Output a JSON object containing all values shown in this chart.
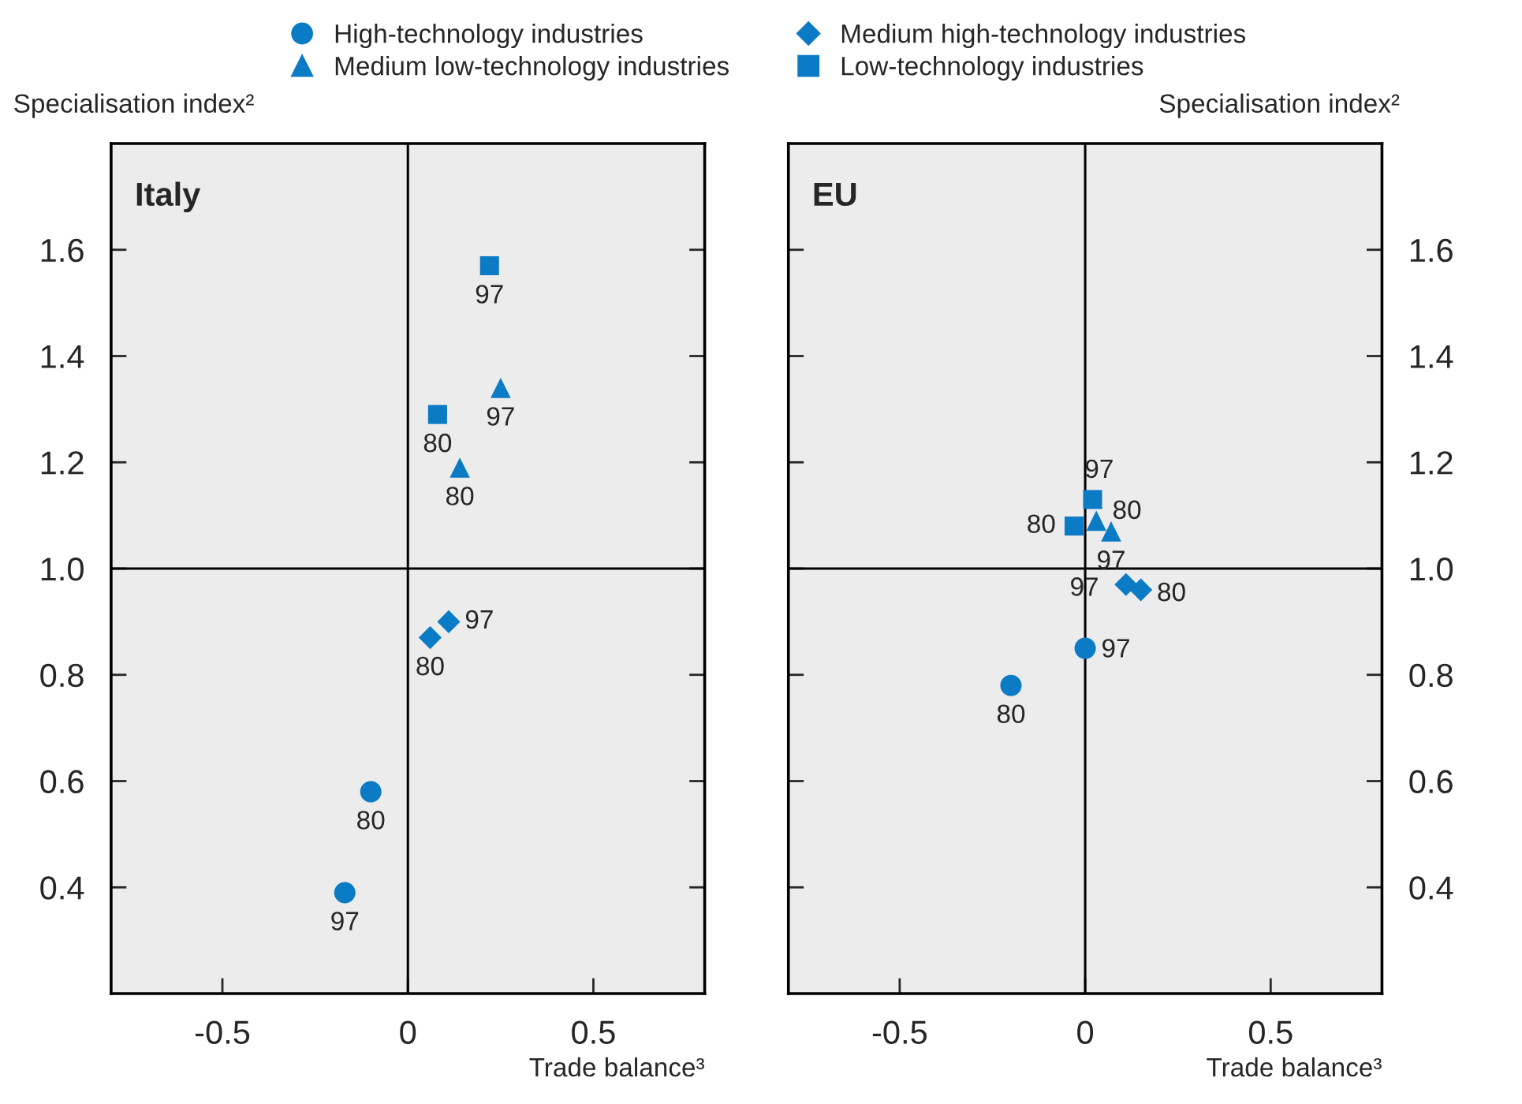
{
  "chart_data": [
    {
      "type": "scatter",
      "title": "Italy",
      "ylabel": "Specialisation index²",
      "xlabel": "Trade balance³",
      "legend": "top",
      "grid": false,
      "xlim": [
        -0.8,
        0.8
      ],
      "xticks": [
        -0.5,
        0,
        0.5
      ],
      "ylim": [
        0.2,
        1.8
      ],
      "yticks": [
        0.4,
        0.6,
        0.8,
        {
          "value": 1,
          "label": "1.0"
        },
        1.2,
        1.4,
        1.6
      ],
      "ref_lines": [
        {
          "axis": "x",
          "value": 0,
          "color": "#000000"
        },
        {
          "axis": "y",
          "value": 1.0,
          "color": "#000000"
        }
      ],
      "series": [
        {
          "name": "High-technology industries",
          "color": "#0a7bc4",
          "marker": "circle",
          "x": [
            -0.1,
            -0.17
          ],
          "values": [
            0.58,
            0.39
          ]
        },
        {
          "name": "Medium high-technology industries",
          "color": "#0a7bc4",
          "marker": "diamond",
          "x": [
            0.06,
            0.11
          ],
          "values": [
            0.87,
            0.9
          ]
        },
        {
          "name": "Medium low-technology industries",
          "color": "#0a7bc4",
          "marker": "triangle",
          "x": [
            0.14,
            0.25
          ],
          "values": [
            1.19,
            1.34
          ]
        },
        {
          "name": "Low-technology industries",
          "color": "#0a7bc4",
          "marker": "square",
          "x": [
            0.08,
            0.22
          ],
          "values": [
            1.29,
            1.57
          ]
        }
      ],
      "annotations": [
        {
          "text": "80",
          "x": -0.1,
          "y": 0.58
        },
        {
          "text": "97",
          "x": -0.17,
          "y": 0.39
        },
        {
          "text": "80",
          "x": 0.06,
          "y": 0.87
        },
        {
          "text": "97",
          "x": 0.11,
          "y": 0.9
        },
        {
          "text": "80",
          "x": 0.14,
          "y": 1.19
        },
        {
          "text": "97",
          "x": 0.25,
          "y": 1.34
        },
        {
          "text": "80",
          "x": 0.08,
          "y": 1.29
        },
        {
          "text": "97",
          "x": 0.22,
          "y": 1.57
        }
      ]
    },
    {
      "type": "scatter",
      "title": "EU",
      "ylabel": "Specialisation index²",
      "xlabel": "Trade balance³",
      "grid": false,
      "xlim": [
        -0.8,
        0.8
      ],
      "xticks": [
        -0.5,
        0,
        0.5
      ],
      "ylim": [
        0.2,
        1.8
      ],
      "yticks": [
        0.4,
        0.6,
        0.8,
        {
          "value": 1,
          "label": "1.0"
        },
        1.2,
        1.4,
        1.6
      ],
      "ref_lines": [
        {
          "axis": "x",
          "value": 0,
          "color": "#000000"
        },
        {
          "axis": "y",
          "value": 1.0,
          "color": "#000000"
        }
      ],
      "series": [
        {
          "color": "#0a7bc4",
          "marker": "circle",
          "x": [
            -0.2,
            0.0
          ],
          "values": [
            0.78,
            0.85
          ]
        },
        {
          "color": "#0a7bc4",
          "marker": "diamond",
          "x": [
            0.15,
            0.11
          ],
          "values": [
            0.96,
            0.97
          ]
        },
        {
          "color": "#0a7bc4",
          "marker": "triangle",
          "x": [
            0.03,
            0.07
          ],
          "values": [
            1.09,
            1.07
          ]
        },
        {
          "color": "#0a7bc4",
          "marker": "square",
          "x": [
            -0.03,
            0.02
          ],
          "values": [
            1.08,
            1.13
          ]
        }
      ],
      "annotations": [
        {
          "text": "80",
          "x": -0.2,
          "y": 0.78
        },
        {
          "text": "97",
          "x": 0.0,
          "y": 0.85
        },
        {
          "text": "80",
          "x": 0.15,
          "y": 0.96
        },
        {
          "text": "97",
          "x": 0.11,
          "y": 0.97
        },
        {
          "text": "80",
          "x": 0.03,
          "y": 1.09
        },
        {
          "text": "97",
          "x": 0.07,
          "y": 1.07
        },
        {
          "text": "80",
          "x": -0.03,
          "y": 1.08
        },
        {
          "text": "97",
          "x": 0.02,
          "y": 1.13
        }
      ]
    }
  ]
}
